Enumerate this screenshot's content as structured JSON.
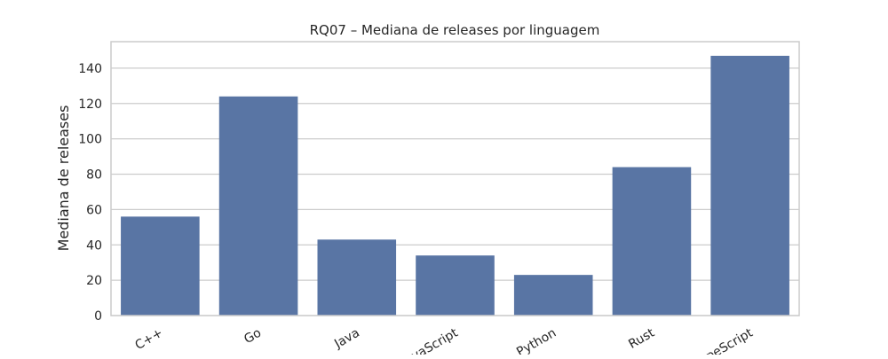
{
  "chart_data": {
    "type": "bar",
    "title": "RQ07 – Mediana de releases por linguagem",
    "xlabel": "",
    "ylabel": "Mediana de releases",
    "categories": [
      "C++",
      "Go",
      "Java",
      "JavaScript",
      "Python",
      "Rust",
      "TypeScript"
    ],
    "values": [
      56,
      124,
      43,
      34,
      23,
      84,
      147
    ],
    "ylim": [
      0,
      155
    ],
    "yticks": [
      0,
      20,
      40,
      60,
      80,
      100,
      120,
      140
    ],
    "grid": "horizontal",
    "bar_color": "#5975a4"
  }
}
